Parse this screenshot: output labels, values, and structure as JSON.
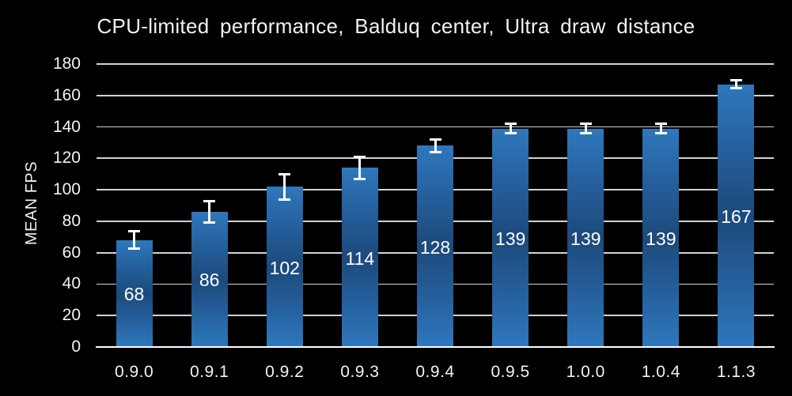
{
  "chart_data": {
    "type": "bar",
    "title": "CPU-limited performance, Balduq center, Ultra draw distance",
    "xlabel": "",
    "ylabel": "MEAN FPS",
    "categories": [
      "0.9.0",
      "0.9.1",
      "0.9.2",
      "0.9.3",
      "0.9.4",
      "0.9.5",
      "1.0.0",
      "1.0.4",
      "1.1.3"
    ],
    "values": [
      68,
      86,
      102,
      114,
      128,
      139,
      139,
      139,
      167
    ],
    "data_labels": [
      "68",
      "86",
      "102",
      "114",
      "128",
      "139",
      "139",
      "139",
      "167"
    ],
    "error_bars": [
      5.5,
      7,
      8,
      7,
      4,
      3,
      3,
      3,
      2.5
    ],
    "ylim": [
      0,
      180
    ],
    "y_ticks": [
      0,
      20,
      40,
      60,
      80,
      100,
      120,
      140,
      160,
      180
    ],
    "grid": "horizontal-only",
    "legend": "none",
    "colors": {
      "background": "#000000",
      "bar_light": "#2e78bc",
      "bar_mid": "#255f9c",
      "bar_dark": "#1c4a7b",
      "gridline": "#d2d2d2",
      "axis_line": "#ffffff",
      "error_bar": "#ffffff",
      "text": "#f2f2f2",
      "bar_label_text": "#ffffff"
    }
  }
}
